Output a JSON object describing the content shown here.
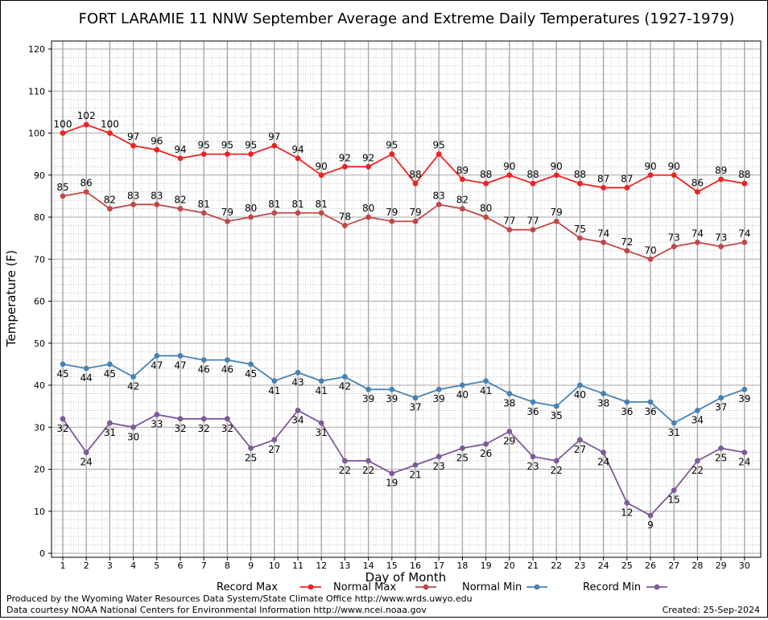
{
  "chart_data": {
    "type": "line",
    "title": "FORT LARAMIE 11 NNW September Average and Extreme Daily Temperatures (1927-1979)",
    "xlabel": "Day of Month",
    "ylabel": "Temperature (F)",
    "ylim": [
      0,
      120
    ],
    "yticks": [
      0,
      10,
      20,
      30,
      40,
      50,
      60,
      70,
      80,
      90,
      100,
      110,
      120
    ],
    "x": [
      1,
      2,
      3,
      4,
      5,
      6,
      7,
      8,
      9,
      10,
      11,
      12,
      13,
      14,
      15,
      16,
      17,
      18,
      19,
      20,
      21,
      22,
      23,
      24,
      25,
      26,
      27,
      28,
      29,
      30
    ],
    "grid": true,
    "legend_position": "bottom",
    "series": [
      {
        "name": "Record Max",
        "color": "#ee2222",
        "label_pos": "above",
        "values": [
          100,
          102,
          100,
          97,
          96,
          94,
          95,
          95,
          95,
          97,
          94,
          90,
          92,
          92,
          95,
          88,
          95,
          89,
          88,
          90,
          88,
          90,
          88,
          87,
          87,
          90,
          90,
          86,
          89,
          88
        ]
      },
      {
        "name": "Normal Max",
        "color": "#c04848",
        "label_pos": "above",
        "values": [
          85,
          86,
          82,
          83,
          83,
          82,
          81,
          79,
          80,
          81,
          81,
          81,
          78,
          80,
          79,
          79,
          83,
          82,
          80,
          77,
          77,
          79,
          75,
          74,
          72,
          70,
          73,
          74,
          73,
          74
        ]
      },
      {
        "name": "Normal Min",
        "color": "#4682b4",
        "label_pos": "below",
        "values": [
          45,
          44,
          45,
          42,
          47,
          47,
          46,
          46,
          45,
          41,
          43,
          41,
          42,
          39,
          39,
          37,
          39,
          40,
          41,
          38,
          36,
          35,
          40,
          38,
          36,
          36,
          31,
          34,
          37,
          39
        ]
      },
      {
        "name": "Record Min",
        "color": "#7d5a9a",
        "label_pos": "below",
        "values": [
          32,
          24,
          31,
          30,
          33,
          32,
          32,
          32,
          25,
          27,
          34,
          31,
          22,
          22,
          19,
          21,
          23,
          25,
          26,
          29,
          23,
          22,
          27,
          24,
          12,
          9,
          15,
          22,
          25,
          24
        ]
      }
    ]
  },
  "footer": {
    "produced_by": "Produced by the Wyoming Water Resources Data System/State Climate Office http://www.wrds.uwyo.edu",
    "courtesy": "Data courtesy NOAA National Centers for Environmental Information http://www.ncei.noaa.gov",
    "created": "Created:  25-Sep-2024"
  }
}
